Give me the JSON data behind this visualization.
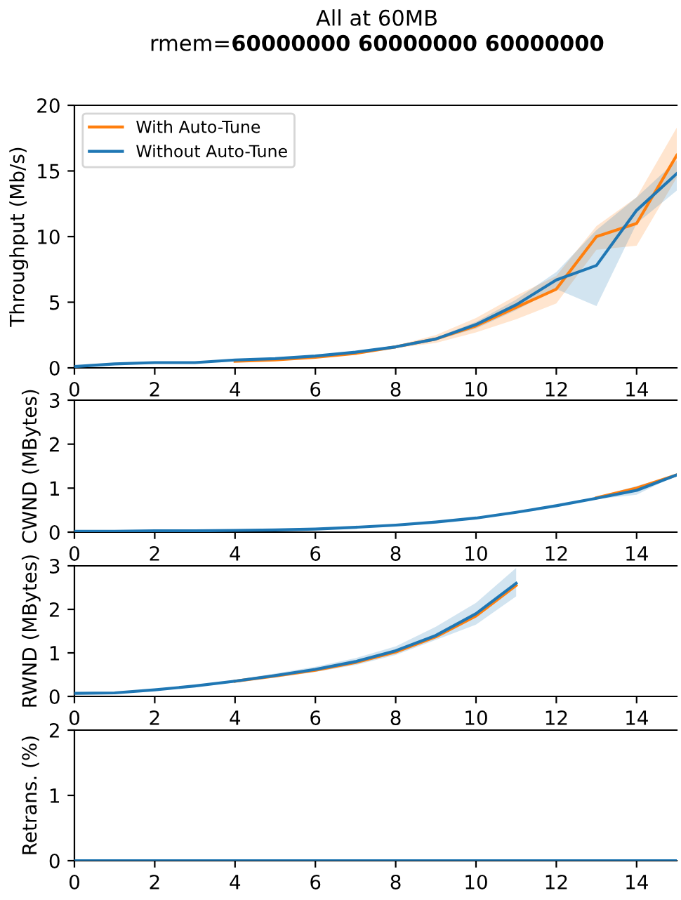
{
  "chart_data": [
    {
      "type": "line",
      "title": "All at 60MB",
      "subtitle": "rmem=60000000 60000000 60000000",
      "ylabel": "Throughput (Mb/s)",
      "x": [
        0,
        1,
        2,
        3,
        4,
        5,
        6,
        7,
        8,
        9,
        10,
        11,
        12,
        13,
        14,
        15
      ],
      "xlim": [
        0,
        15
      ],
      "xticks": [
        0,
        2,
        4,
        6,
        8,
        10,
        12,
        14
      ],
      "ylim": [
        0,
        20
      ],
      "yticks": [
        0,
        5,
        10,
        15,
        20
      ],
      "legend": "top left",
      "grid": false,
      "marker": "none",
      "line_style": "solid",
      "series": [
        {
          "name": "With Auto-Tune",
          "color": "#ff7f0e",
          "values": [
            null,
            null,
            null,
            null,
            0.5,
            0.6,
            0.8,
            1.1,
            1.6,
            2.2,
            3.2,
            4.6,
            6.0,
            10.0,
            11.0,
            16.2
          ],
          "lower": [
            0.1,
            0.3,
            0.4,
            0.4,
            0.5,
            0.6,
            0.8,
            1.0,
            1.5,
            1.9,
            2.7,
            3.7,
            4.9,
            9.0,
            9.3,
            14.5
          ],
          "upper": [
            0.1,
            0.3,
            0.4,
            0.4,
            0.5,
            0.6,
            0.8,
            1.2,
            1.7,
            2.5,
            3.8,
            5.5,
            7.0,
            10.8,
            13.0,
            18.3
          ]
        },
        {
          "name": "Without Auto-Tune",
          "color": "#1f77b4",
          "values": [
            0.1,
            0.3,
            0.4,
            0.4,
            0.6,
            0.7,
            0.9,
            1.2,
            1.6,
            2.2,
            3.3,
            4.8,
            6.7,
            7.8,
            12.0,
            14.8
          ],
          "lower": [
            0.1,
            0.3,
            0.4,
            0.4,
            0.6,
            0.7,
            0.9,
            1.2,
            1.6,
            2.1,
            3.0,
            4.4,
            6.0,
            4.7,
            11.0,
            13.5
          ],
          "upper": [
            0.1,
            0.3,
            0.4,
            0.4,
            0.6,
            0.7,
            0.9,
            1.2,
            1.7,
            2.3,
            3.5,
            5.2,
            7.3,
            10.5,
            13.0,
            15.8
          ]
        }
      ]
    },
    {
      "type": "line",
      "ylabel": "CWND (MBytes)",
      "x": [
        0,
        1,
        2,
        3,
        4,
        5,
        6,
        7,
        8,
        9,
        10,
        11,
        12,
        13,
        14,
        15
      ],
      "xlim": [
        0,
        15
      ],
      "xticks": [
        0,
        2,
        4,
        6,
        8,
        10,
        12,
        14
      ],
      "ylim": [
        0,
        3
      ],
      "yticks": [
        0,
        1,
        2,
        3
      ],
      "grid": false,
      "marker": "none",
      "line_style": "solid",
      "series": [
        {
          "color": "#ff7f0e",
          "values": [
            null,
            null,
            null,
            null,
            null,
            null,
            null,
            null,
            null,
            null,
            null,
            null,
            null,
            0.78,
            1.0,
            1.3
          ]
        },
        {
          "color": "#1f77b4",
          "values": [
            0.02,
            0.02,
            0.03,
            0.03,
            0.04,
            0.05,
            0.07,
            0.11,
            0.16,
            0.23,
            0.32,
            0.45,
            0.6,
            0.77,
            0.95,
            1.3
          ],
          "lower": [
            0.02,
            0.02,
            0.03,
            0.03,
            0.04,
            0.05,
            0.07,
            0.11,
            0.16,
            0.23,
            0.32,
            0.45,
            0.6,
            0.75,
            0.85,
            1.3
          ],
          "upper": [
            0.02,
            0.02,
            0.03,
            0.03,
            0.04,
            0.05,
            0.07,
            0.11,
            0.16,
            0.23,
            0.32,
            0.45,
            0.6,
            0.8,
            1.05,
            1.3
          ]
        }
      ]
    },
    {
      "type": "line",
      "ylabel": "RWND (MBytes)",
      "x": [
        0,
        1,
        2,
        3,
        4,
        5,
        6,
        7,
        8,
        9,
        10,
        11
      ],
      "xlim": [
        0,
        15
      ],
      "xticks": [
        0,
        2,
        4,
        6,
        8,
        10,
        12,
        14
      ],
      "ylim": [
        0,
        3
      ],
      "yticks": [
        0,
        1,
        2,
        3
      ],
      "grid": false,
      "marker": "none",
      "line_style": "solid",
      "series": [
        {
          "color": "#ff7f0e",
          "values": [
            null,
            null,
            null,
            null,
            0.35,
            0.47,
            0.6,
            0.78,
            1.02,
            1.37,
            1.85,
            2.55
          ]
        },
        {
          "color": "#1f77b4",
          "values": [
            0.07,
            0.08,
            0.15,
            0.24,
            0.35,
            0.48,
            0.62,
            0.8,
            1.05,
            1.4,
            1.9,
            2.6
          ],
          "lower": [
            0.06,
            0.07,
            0.14,
            0.22,
            0.32,
            0.43,
            0.56,
            0.72,
            0.95,
            1.3,
            1.65,
            2.3
          ],
          "upper": [
            0.08,
            0.09,
            0.16,
            0.26,
            0.38,
            0.53,
            0.68,
            0.88,
            1.15,
            1.6,
            2.15,
            2.95
          ]
        }
      ]
    },
    {
      "type": "line",
      "ylabel": "Retrans. (%)",
      "x": [
        0,
        1,
        2,
        3,
        4,
        5,
        6,
        7,
        8,
        9,
        10,
        11,
        12,
        13,
        14,
        15
      ],
      "xlim": [
        0,
        15
      ],
      "xticks": [
        0,
        2,
        4,
        6,
        8,
        10,
        12,
        14
      ],
      "ylim": [
        0,
        2
      ],
      "yticks": [
        0,
        1,
        2
      ],
      "grid": false,
      "marker": "none",
      "line_style": "solid",
      "series": [
        {
          "color": "#1f77b4",
          "values": [
            0,
            0,
            0,
            0,
            0,
            0,
            0,
            0,
            0,
            0,
            0,
            0,
            0,
            0,
            0,
            0
          ]
        }
      ]
    }
  ]
}
